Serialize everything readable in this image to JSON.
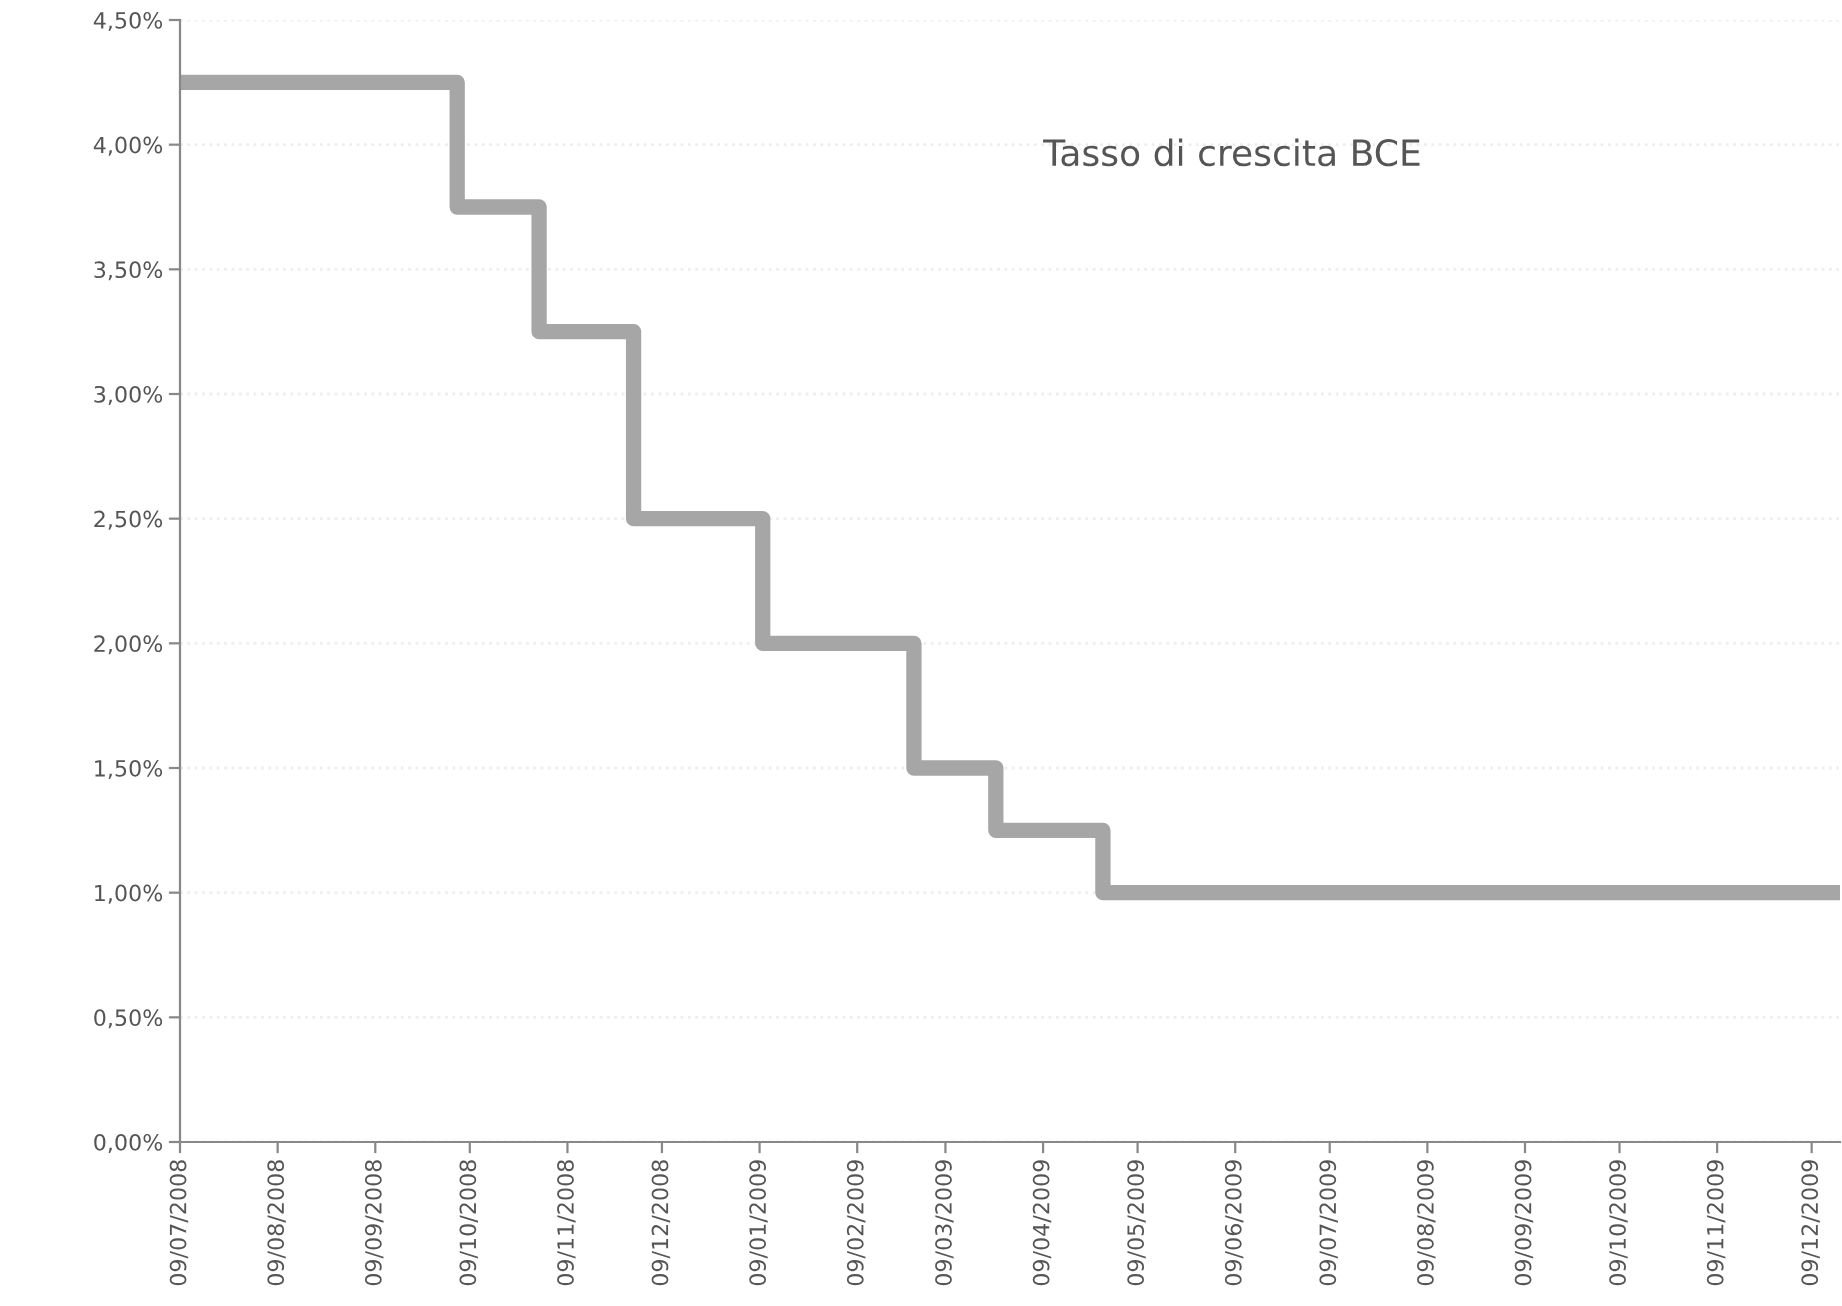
{
  "chart_data": {
    "type": "step",
    "title": "Tasso di crescita BCE",
    "series": [
      {
        "color": "#a6a6a6",
        "x": [
          "2008-07-09",
          "2008-10-05",
          "2008-10-31",
          "2008-11-30",
          "2009-01-10",
          "2009-02-27",
          "2009-03-25",
          "2009-04-28",
          "2009-12-18"
        ],
        "values": [
          4.25,
          3.75,
          3.25,
          2.5,
          2.0,
          1.5,
          1.25,
          1.0,
          1.0
        ]
      }
    ],
    "xlim": [
      "2008-07-09",
      "2009-12-18"
    ],
    "xticks": [
      {
        "value": "2008-07-09",
        "label": "09/07/2008"
      },
      {
        "value": "2008-08-09",
        "label": "09/08/2008"
      },
      {
        "value": "2008-09-09",
        "label": "09/09/2008"
      },
      {
        "value": "2008-10-09",
        "label": "09/10/2008"
      },
      {
        "value": "2008-11-09",
        "label": "09/11/2008"
      },
      {
        "value": "2008-12-09",
        "label": "09/12/2008"
      },
      {
        "value": "2009-01-09",
        "label": "09/01/2009"
      },
      {
        "value": "2009-02-09",
        "label": "09/02/2009"
      },
      {
        "value": "2009-03-09",
        "label": "09/03/2009"
      },
      {
        "value": "2009-04-09",
        "label": "09/04/2009"
      },
      {
        "value": "2009-05-09",
        "label": "09/05/2009"
      },
      {
        "value": "2009-06-09",
        "label": "09/06/2009"
      },
      {
        "value": "2009-07-09",
        "label": "09/07/2009"
      },
      {
        "value": "2009-08-09",
        "label": "09/08/2009"
      },
      {
        "value": "2009-09-09",
        "label": "09/09/2009"
      },
      {
        "value": "2009-10-09",
        "label": "09/10/2009"
      },
      {
        "value": "2009-11-09",
        "label": "09/11/2009"
      },
      {
        "value": "2009-12-09",
        "label": "09/12/2009"
      }
    ],
    "ylim": [
      0,
      4.5
    ],
    "yticks": [
      {
        "value": 0,
        "label": "0,00%"
      },
      {
        "value": 0.5,
        "label": "0,50%"
      },
      {
        "value": 1,
        "label": "1,00%"
      },
      {
        "value": 1.5,
        "label": "1,50%"
      },
      {
        "value": 2,
        "label": "2,00%"
      },
      {
        "value": 2.5,
        "label": "2,50%"
      },
      {
        "value": 3,
        "label": "3,00%"
      },
      {
        "value": 3.5,
        "label": "3,50%"
      },
      {
        "value": 4,
        "label": "4,00%"
      },
      {
        "value": 4.5,
        "label": "4,50%"
      }
    ],
    "grid": "y",
    "legend": false
  }
}
